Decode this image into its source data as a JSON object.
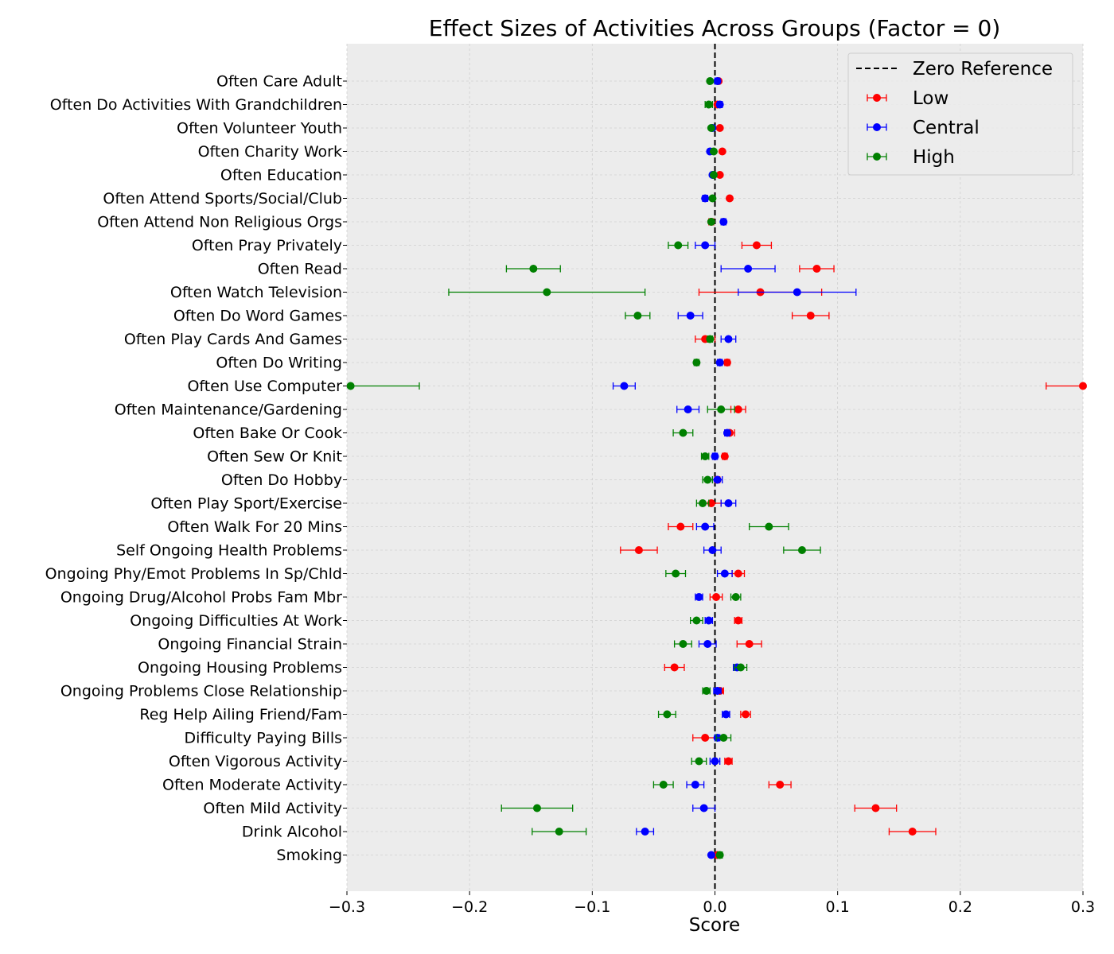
{
  "chart_data": {
    "type": "errorbar",
    "title": "Effect Sizes of Activities Across Groups (Factor = 0)",
    "xlabel": "Score",
    "ylabel": "",
    "xlim": [
      -0.3,
      0.3
    ],
    "xticks": [
      -0.3,
      -0.2,
      -0.1,
      0.0,
      0.1,
      0.2,
      0.3
    ],
    "xtick_labels": [
      "−0.3",
      "−0.2",
      "−0.1",
      "0.0",
      "0.1",
      "0.2",
      "0.3"
    ],
    "grid": true,
    "legend_position": "top-right",
    "reference_line": {
      "x": 0,
      "label": "Zero Reference",
      "style": "dashed",
      "color": "#000000"
    },
    "categories": [
      "Often Care Adult",
      "Often Do Activities With Grandchildren",
      "Often Volunteer Youth",
      "Often Charity Work",
      "Often Education",
      "Often Attend Sports/Social/Club",
      "Often Attend Non Religious Orgs",
      "Often Pray Privately",
      "Often Read",
      "Often Watch Television",
      "Often Do Word Games",
      "Often Play Cards And Games",
      "Often Do Writing",
      "Often Use Computer",
      "Often Maintenance/Gardening",
      "Often Bake Or Cook",
      "Often Sew Or Knit",
      "Often Do Hobby",
      "Often Play Sport/Exercise",
      "Often Walk For 20 Mins",
      "Self Ongoing Health Problems",
      "Ongoing Phy/Emot Problems In Sp/Chld",
      "Ongoing Drug/Alcohol Probs Fam Mbr",
      "Ongoing Difficulties At Work",
      "Ongoing Financial Strain",
      "Ongoing Housing Problems",
      "Ongoing Problems Close Relationship",
      "Reg Help Ailing Friend/Fam",
      "Difficulty Paying Bills",
      "Often Vigorous Activity",
      "Often Moderate Activity",
      "Often Mild Activity",
      "Drink Alcohol",
      "Smoking"
    ],
    "series": [
      {
        "name": "Low",
        "color": "#ff0000",
        "values": [
          0.003,
          0.002,
          0.004,
          0.006,
          0.004,
          0.012,
          -0.003,
          0.034,
          0.083,
          0.037,
          0.078,
          -0.008,
          0.01,
          0.3,
          0.019,
          0.012,
          0.008,
          0.002,
          -0.003,
          -0.028,
          -0.062,
          0.019,
          0.001,
          0.019,
          0.028,
          -0.033,
          0.004,
          0.025,
          -0.008,
          0.011,
          0.053,
          0.131,
          0.161,
          0.002
        ],
        "errors": [
          0.001,
          0.001,
          0.001,
          0.001,
          0.001,
          0.001,
          0.002,
          0.012,
          0.014,
          0.05,
          0.015,
          0.008,
          0.002,
          0.03,
          0.006,
          0.004,
          0.002,
          0.002,
          0.008,
          0.01,
          0.015,
          0.005,
          0.005,
          0.003,
          0.01,
          0.008,
          0.003,
          0.004,
          0.01,
          0.003,
          0.009,
          0.017,
          0.019,
          0.001
        ]
      },
      {
        "name": "Central",
        "color": "#0000ff",
        "values": [
          0.002,
          0.004,
          -0.002,
          -0.004,
          -0.002,
          -0.008,
          0.007,
          -0.008,
          0.027,
          0.067,
          -0.02,
          0.011,
          0.004,
          -0.074,
          -0.022,
          0.01,
          0.0,
          0.002,
          0.011,
          -0.008,
          -0.002,
          0.008,
          -0.013,
          -0.005,
          -0.006,
          0.018,
          0.002,
          0.009,
          0.002,
          0.0,
          -0.016,
          -0.009,
          -0.057,
          -0.003
        ],
        "errors": [
          0.002,
          0.002,
          0.001,
          0.001,
          0.001,
          0.002,
          0.002,
          0.008,
          0.022,
          0.048,
          0.01,
          0.006,
          0.002,
          0.009,
          0.009,
          0.002,
          0.002,
          0.004,
          0.006,
          0.007,
          0.007,
          0.006,
          0.003,
          0.003,
          0.007,
          0.003,
          0.003,
          0.003,
          0.002,
          0.004,
          0.007,
          0.009,
          0.007,
          0.001
        ]
      },
      {
        "name": "High",
        "color": "#008000",
        "values": [
          -0.004,
          -0.005,
          -0.003,
          -0.001,
          -0.001,
          -0.002,
          -0.003,
          -0.03,
          -0.148,
          -0.137,
          -0.063,
          -0.004,
          -0.015,
          -0.297,
          0.005,
          -0.026,
          -0.008,
          -0.006,
          -0.01,
          0.044,
          0.071,
          -0.032,
          0.017,
          -0.015,
          -0.026,
          0.021,
          -0.007,
          -0.039,
          0.007,
          -0.013,
          -0.042,
          -0.145,
          -0.127,
          0.004
        ],
        "errors": [
          0.001,
          0.003,
          0.001,
          0.001,
          0.001,
          0.001,
          0.001,
          0.008,
          0.022,
          0.08,
          0.01,
          0.002,
          0.002,
          0.056,
          0.011,
          0.008,
          0.003,
          0.004,
          0.005,
          0.016,
          0.015,
          0.008,
          0.004,
          0.005,
          0.007,
          0.005,
          0.003,
          0.007,
          0.006,
          0.006,
          0.008,
          0.029,
          0.022,
          0.002
        ]
      }
    ]
  }
}
